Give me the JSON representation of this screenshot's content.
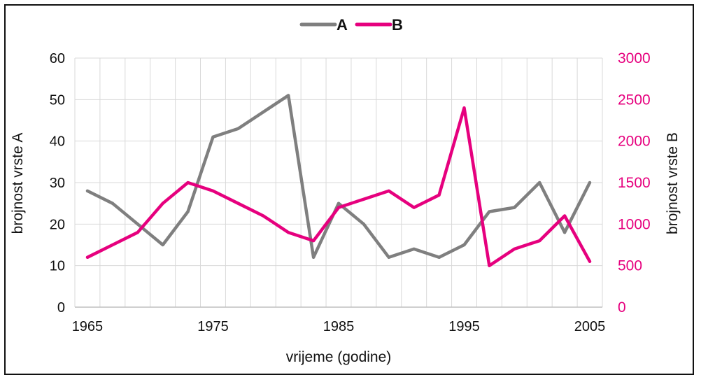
{
  "chart_data": {
    "type": "line",
    "legend_position": "top-center",
    "grid": true,
    "x": [
      1965,
      1967,
      1969,
      1971,
      1973,
      1975,
      1977,
      1979,
      1981,
      1983,
      1985,
      1987,
      1989,
      1991,
      1993,
      1995,
      1997,
      1999,
      2001,
      2003,
      2005
    ],
    "x_ticks": [
      "1965",
      "1975",
      "1985",
      "1995",
      "2005"
    ],
    "xlim": [
      1964,
      2006
    ],
    "xlabel": "vrijeme (godine)",
    "y_left": {
      "label": "brojnost  vrste A",
      "lim": [
        0,
        60
      ],
      "ticks": [
        "0",
        "10",
        "20",
        "30",
        "40",
        "50",
        "60"
      ]
    },
    "y_right": {
      "label": "brojnost vrste B",
      "lim": [
        0,
        3000
      ],
      "ticks": [
        "0",
        "500",
        "1000",
        "1500",
        "2000",
        "2500",
        "3000"
      ]
    },
    "series": [
      {
        "name": "A",
        "axis": "left",
        "color": "#7f7f7f",
        "values": [
          28,
          25,
          20,
          15,
          23,
          41,
          43,
          47,
          51,
          12,
          25,
          20,
          12,
          14,
          12,
          15,
          23,
          24,
          30,
          18,
          30
        ]
      },
      {
        "name": "B",
        "axis": "right",
        "color": "#e6007e",
        "values": [
          600,
          750,
          900,
          1250,
          1500,
          1400,
          1250,
          1100,
          900,
          800,
          1200,
          1300,
          1400,
          1200,
          1350,
          2400,
          500,
          700,
          800,
          1100,
          550
        ]
      }
    ]
  }
}
